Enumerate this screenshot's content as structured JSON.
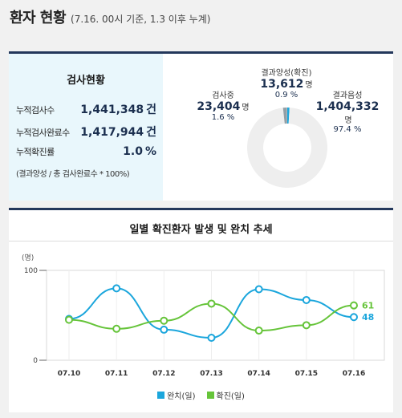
{
  "header": {
    "title": "환자 현황",
    "subtitle": "(7.16. 00시 기준, 1.3 이후 누계)"
  },
  "test_status": {
    "title": "검사현황",
    "rows": [
      {
        "label": "누적검사수",
        "value": "1,441,348",
        "unit": "건"
      },
      {
        "label": "누적검사완료수",
        "value": "1,417,944",
        "unit": "건"
      },
      {
        "label": "누적확진률",
        "value": "1.0",
        "unit": "%"
      }
    ],
    "note": "(결과양성 / 총 검사완료수 * 100%)"
  },
  "donut": {
    "segments": [
      {
        "label": "결과양성(확진)",
        "value": "13,612",
        "unit": "명",
        "percent": "0.9 %",
        "fraction": 0.009,
        "color": "#1ba6dc"
      },
      {
        "label": "결과음성",
        "value": "1,404,332",
        "unit": "명",
        "percent": "97.4 %",
        "fraction": 0.974,
        "color": "#eeeeee"
      },
      {
        "label": "검사중",
        "value": "23,404",
        "unit": "명",
        "percent": "1.6 %",
        "fraction": 0.016,
        "color": "#939fa6"
      }
    ]
  },
  "chart_data": {
    "type": "line",
    "title": "일별 확진환자 발생 및 완치 추세",
    "ylabel": "(명)",
    "ylim": [
      0,
      100
    ],
    "y_ticks": [
      "0",
      "100"
    ],
    "categories": [
      "07.10",
      "07.11",
      "07.12",
      "07.13",
      "07.14",
      "07.15",
      "07.16"
    ],
    "series": [
      {
        "name": "완치(일)",
        "color": "#1ba6dc",
        "values": [
          46,
          80,
          34,
          25,
          79,
          67,
          48
        ]
      },
      {
        "name": "확진(일)",
        "color": "#66c43a",
        "values": [
          45,
          35,
          44,
          63,
          33,
          39,
          61
        ]
      }
    ],
    "end_labels": [
      "48",
      "61"
    ]
  }
}
